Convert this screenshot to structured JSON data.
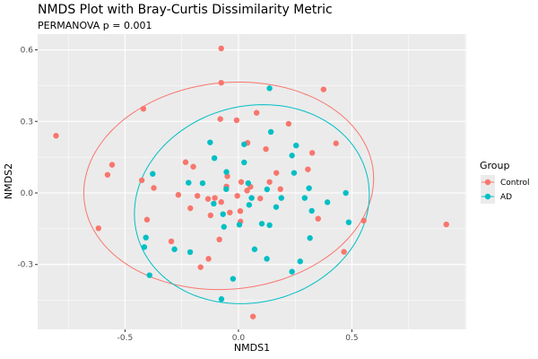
{
  "chart_data": {
    "type": "scatter",
    "title": "NMDS Plot with Bray-Curtis Dissimilarity Metric",
    "subtitle": "PERMANOVA p = 0.001",
    "xlabel": "NMDS1",
    "ylabel": "NMDS2",
    "xlim": [
      -0.885,
      1.004
    ],
    "ylim": [
      -0.572,
      0.666
    ],
    "xticks": [
      -0.5,
      0.0,
      0.5
    ],
    "xtick_labels": [
      "-0.5",
      "0.0",
      "0.5"
    ],
    "yticks": [
      -0.3,
      0.0,
      0.3,
      0.6
    ],
    "ytick_labels": [
      "-0.3",
      "0.0",
      "0.3",
      "0.6"
    ],
    "grid": true,
    "legend": {
      "title": "Group",
      "placement": "right"
    },
    "series": [
      {
        "name": "Control",
        "color": "#F8766D",
        "ellipse": {
          "center": [
            -0.043,
            0.03
          ],
          "radii": [
            0.64,
            0.433
          ],
          "angle_deg": 5
        },
        "points": [
          [
            -0.076,
            0.606
          ],
          [
            -0.076,
            0.462
          ],
          [
            -0.419,
            0.353
          ],
          [
            -0.804,
            0.24
          ],
          [
            -0.08,
            0.31
          ],
          [
            -0.008,
            0.305
          ],
          [
            0.04,
            0.21
          ],
          [
            -0.557,
            0.118
          ],
          [
            -0.577,
            0.076
          ],
          [
            -0.233,
            0.129
          ],
          [
            -0.199,
            0.11
          ],
          [
            -0.049,
            0.07
          ],
          [
            0.012,
            0.046
          ],
          [
            -0.426,
            0.053
          ],
          [
            0.375,
            0.434
          ],
          [
            0.08,
            0.336
          ],
          [
            0.221,
            0.29
          ],
          [
            0.121,
            0.184
          ],
          [
            0.43,
            0.208
          ],
          [
            0.325,
            0.168
          ],
          [
            0.167,
            0.084
          ],
          [
            0.306,
            0.099
          ],
          [
            0.137,
            0.046
          ],
          [
            -0.053,
            0.027
          ],
          [
            0.053,
            0.026
          ],
          [
            0.038,
            0.01
          ],
          [
            0.185,
            0.016
          ],
          [
            -0.265,
            -0.008
          ],
          [
            -0.181,
            -0.012
          ],
          [
            -0.134,
            -0.025
          ],
          [
            -0.104,
            -0.021
          ],
          [
            -0.076,
            -0.038
          ],
          [
            -0.005,
            -0.012
          ],
          [
            0.096,
            -0.023
          ],
          [
            -0.212,
            -0.064
          ],
          [
            -0.123,
            -0.094
          ],
          [
            -0.038,
            -0.082
          ],
          [
            0.008,
            -0.076
          ],
          [
            0.351,
            -0.108
          ],
          [
            0.009,
            -0.12
          ],
          [
            -0.084,
            -0.195
          ],
          [
            -0.373,
            0.021
          ],
          [
            -0.403,
            -0.112
          ],
          [
            -0.617,
            -0.148
          ],
          [
            -0.296,
            -0.203
          ],
          [
            -0.132,
            -0.276
          ],
          [
            -0.167,
            -0.311
          ],
          [
            0.552,
            -0.116
          ],
          [
            0.916,
            -0.132
          ],
          [
            0.465,
            -0.247
          ],
          [
            0.064,
            -0.518
          ]
        ]
      },
      {
        "name": "AD",
        "color": "#00BFC4",
        "ellipse": {
          "center": [
            0.059,
            -0.047
          ],
          "radii": [
            0.522,
            0.412
          ],
          "angle_deg": 12
        },
        "points": [
          [
            -0.125,
            0.212
          ],
          [
            0.025,
            0.204
          ],
          [
            -0.106,
            0.146
          ],
          [
            0.025,
            0.128
          ],
          [
            -0.053,
            0.088
          ],
          [
            -0.378,
            0.08
          ],
          [
            -0.22,
            0.043
          ],
          [
            -0.158,
            0.041
          ],
          [
            0.043,
            0.041
          ],
          [
            0.137,
            0.439
          ],
          [
            0.143,
            0.256
          ],
          [
            0.254,
            0.199
          ],
          [
            0.236,
            0.157
          ],
          [
            0.245,
            0.084
          ],
          [
            -0.054,
            0.016
          ],
          [
            0.126,
            0.015
          ],
          [
            0.311,
            0.02
          ],
          [
            0.058,
            -0.021
          ],
          [
            0.189,
            -0.021
          ],
          [
            0.292,
            -0.021
          ],
          [
            0.392,
            -0.039
          ],
          [
            -0.109,
            -0.045
          ],
          [
            0.047,
            -0.05
          ],
          [
            0.166,
            -0.059
          ],
          [
            0.323,
            -0.075
          ],
          [
            -0.068,
            -0.089
          ],
          [
            0.103,
            -0.129
          ],
          [
            0.137,
            -0.135
          ],
          [
            -0.064,
            -0.142
          ],
          [
            0.004,
            -0.133
          ],
          [
            0.315,
            -0.189
          ],
          [
            -0.408,
            -0.187
          ],
          [
            -0.415,
            -0.227
          ],
          [
            -0.282,
            -0.236
          ],
          [
            -0.213,
            -0.248
          ],
          [
            -0.392,
            -0.345
          ],
          [
            -0.024,
            -0.36
          ],
          [
            -0.075,
            -0.445
          ],
          [
            0.473,
            0.0
          ],
          [
            0.486,
            -0.123
          ],
          [
            0.071,
            -0.236
          ],
          [
            0.125,
            -0.276
          ],
          [
            0.272,
            -0.287
          ],
          [
            0.236,
            -0.33
          ]
        ]
      }
    ]
  }
}
